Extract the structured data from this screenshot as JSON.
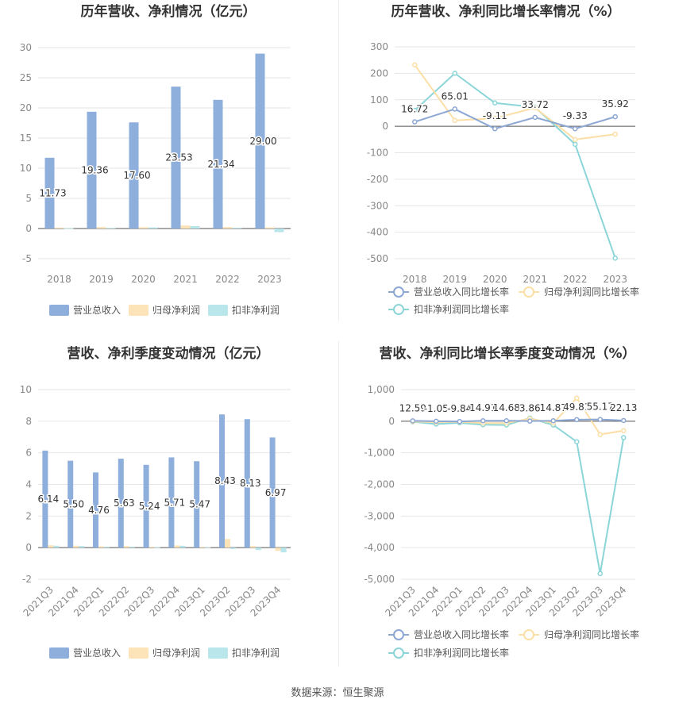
{
  "source_text": "数据来源：恒生聚源",
  "colors": {
    "revenue": "#8eaedb",
    "net_profit": "#fce3b8",
    "deducted": "#b9e6ea",
    "revenue_line": "#8ca7d4",
    "net_profit_line": "#fcdfa6",
    "deducted_line": "#8bd5d9",
    "grid": "#e6e6e6",
    "axis_text": "#888888"
  },
  "chart_data": [
    {
      "id": "annual_bar",
      "type": "bar",
      "title": "历年营收、净利情况（亿元）",
      "categories": [
        "2018",
        "2019",
        "2020",
        "2021",
        "2022",
        "2023"
      ],
      "ylim": [
        -5,
        30
      ],
      "yticks": [
        "-5",
        "0",
        "5",
        "10",
        "15",
        "20",
        "25",
        "30"
      ],
      "series": [
        {
          "name": "营业总收入",
          "values": [
            11.73,
            19.36,
            17.6,
            23.53,
            21.34,
            29.0
          ],
          "labels": [
            "11.73",
            "19.36",
            "17.60",
            "23.53",
            "21.34",
            "29.00"
          ]
        },
        {
          "name": "归母净利润",
          "values": [
            0.15,
            0.25,
            0.22,
            0.5,
            0.25,
            0.18
          ]
        },
        {
          "name": "扣非净利润",
          "values": [
            0.05,
            0.1,
            0.18,
            0.4,
            0.12,
            -0.6
          ]
        }
      ],
      "legend": "bottom"
    },
    {
      "id": "annual_line",
      "type": "line",
      "title": "历年营收、净利同比增长率情况（%）",
      "categories": [
        "2018",
        "2019",
        "2020",
        "2021",
        "2022",
        "2023"
      ],
      "ylim": [
        -500,
        300
      ],
      "yticks": [
        "-500",
        "-400",
        "-300",
        "-200",
        "-100",
        "0",
        "100",
        "200",
        "300"
      ],
      "series": [
        {
          "name": "营业总收入同比增长率",
          "values": [
            16.72,
            65.01,
            -9.11,
            33.72,
            -9.33,
            35.92
          ],
          "labels": [
            "16.72",
            "65.01",
            "-9.11",
            "33.72",
            "-9.33",
            "35.92"
          ]
        },
        {
          "name": "归母净利润同比增长率",
          "values": [
            232,
            22,
            30,
            70,
            -50,
            -30
          ]
        },
        {
          "name": "扣非净利润同比增长率",
          "values": [
            60,
            200,
            88,
            72,
            -68,
            -498
          ]
        }
      ],
      "legend": "bottom"
    },
    {
      "id": "quarter_bar",
      "type": "bar",
      "title": "营收、净利季度变动情况（亿元）",
      "categories": [
        "2021Q3",
        "2021Q4",
        "2022Q1",
        "2022Q2",
        "2022Q3",
        "2022Q4",
        "2023Q1",
        "2023Q2",
        "2023Q3",
        "2023Q4"
      ],
      "ylim": [
        -2,
        10
      ],
      "yticks": [
        "-2",
        "0",
        "2",
        "4",
        "6",
        "8",
        "10"
      ],
      "series": [
        {
          "name": "营业总收入",
          "values": [
            6.14,
            5.5,
            4.76,
            5.63,
            5.24,
            5.71,
            5.47,
            8.43,
            8.13,
            6.97
          ],
          "labels": [
            "6.14",
            "5.50",
            "4.76",
            "5.63",
            "5.24",
            "5.71",
            "5.47",
            "8.43",
            "8.13",
            "6.97"
          ]
        },
        {
          "name": "归母净利润",
          "values": [
            0.15,
            0.12,
            0.08,
            0.1,
            0.05,
            0.14,
            0.05,
            0.55,
            0.1,
            -0.2
          ]
        },
        {
          "name": "扣非净利润",
          "values": [
            0.12,
            0.1,
            0.06,
            0.06,
            0.03,
            0.12,
            0.03,
            -0.08,
            -0.15,
            -0.3
          ]
        }
      ],
      "legend": "bottom"
    },
    {
      "id": "quarter_line",
      "type": "line",
      "title": "营收、净利同比增长率季度变动情况（%）",
      "categories": [
        "2021Q3",
        "2021Q4",
        "2022Q1",
        "2022Q2",
        "2022Q3",
        "2022Q4",
        "2023Q1",
        "2023Q2",
        "2023Q3",
        "2023Q4"
      ],
      "ylim": [
        -5000,
        1000
      ],
      "yticks": [
        "-5,000",
        "-4,000",
        "-3,000",
        "-2,000",
        "-1,000",
        "0",
        "1,000"
      ],
      "series": [
        {
          "name": "营业总收入同比增长率",
          "values": [
            12.59,
            -1.05,
            -9.84,
            14.91,
            14.68,
            3.86,
            14.87,
            49.81,
            55.17,
            22.13
          ],
          "labels": [
            "12.59",
            "-1.05",
            "-9.84",
            "14.91",
            "14.68",
            "3.86",
            "14.87",
            "49.81",
            "55.17",
            "22.13"
          ]
        },
        {
          "name": "归母净利润同比增长率",
          "values": [
            -10,
            -30,
            -20,
            -60,
            -60,
            80,
            -60,
            730,
            -420,
            -300
          ]
        },
        {
          "name": "扣非净利润同比增长率",
          "values": [
            -20,
            -90,
            -50,
            -110,
            -120,
            100,
            -120,
            -650,
            -4820,
            -520
          ]
        }
      ],
      "legend": "bottom"
    }
  ]
}
